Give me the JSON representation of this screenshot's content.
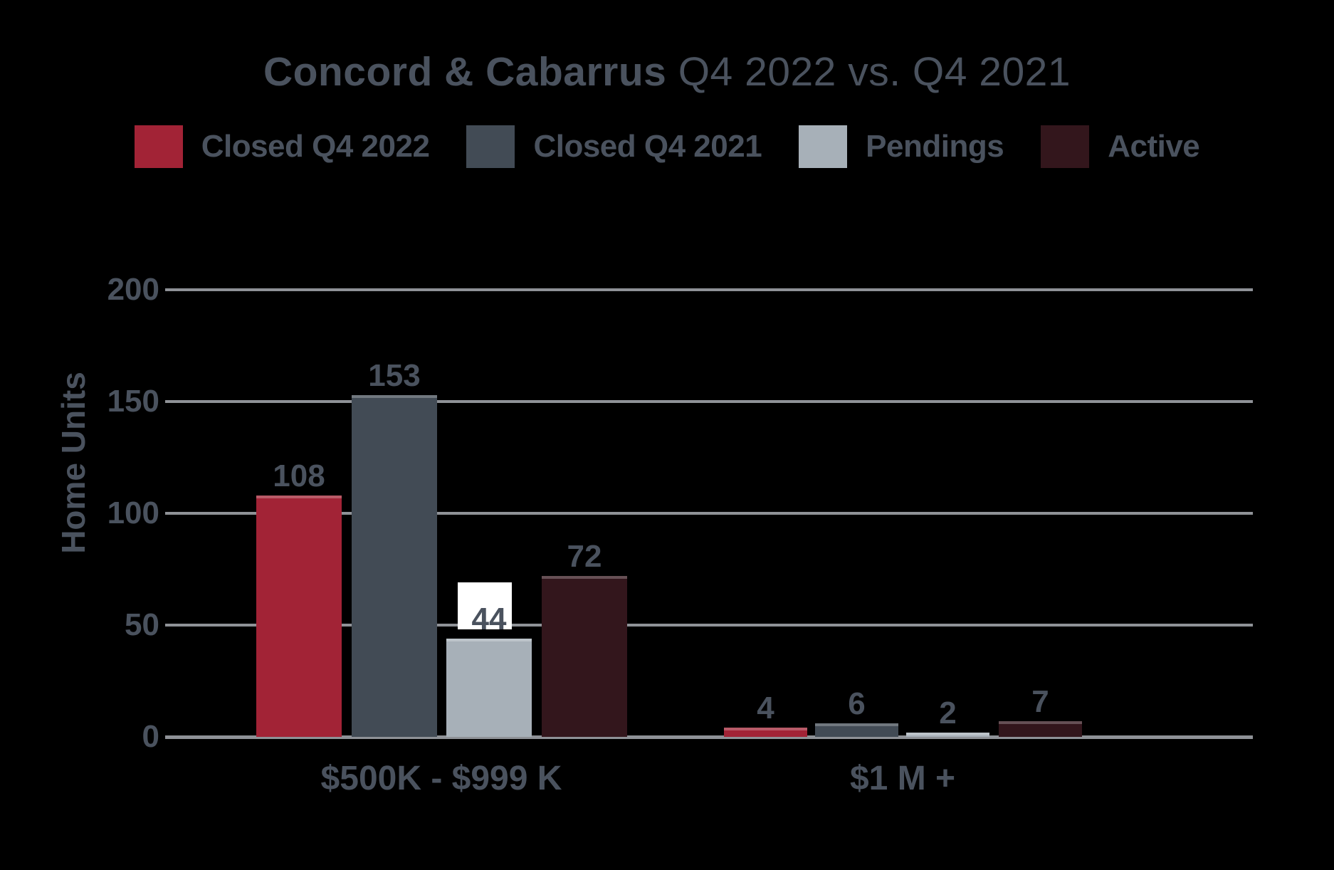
{
  "title": {
    "bold": "Concord & Cabarrus",
    "regular": " Q4 2022 vs. Q4 2021"
  },
  "chart_data": {
    "type": "bar",
    "title": "Concord & Cabarrus Q4 2022 vs. Q4 2021",
    "ylabel": "Home Units",
    "categories": [
      "$500K - $999 K",
      "$1 M +"
    ],
    "series": [
      {
        "name": "Closed Q4 2022",
        "color": "#a22336",
        "values": [
          108,
          4
        ]
      },
      {
        "name": "Closed Q4 2021",
        "color": "#424b55",
        "values": [
          153,
          6
        ]
      },
      {
        "name": "Pendings",
        "color": "#a7b0b8",
        "values": [
          44,
          2
        ]
      },
      {
        "name": "Active",
        "color": "#33161c",
        "values": [
          72,
          7
        ]
      }
    ],
    "ylim": [
      0,
      200
    ],
    "yticks": [
      0,
      50,
      100,
      150,
      200
    ],
    "grid": true,
    "legend_position": "top",
    "value_label_highlight": {
      "series_index": 2,
      "category_index": 0
    }
  },
  "colors": {
    "background": "#000000",
    "text": "#4a525e",
    "gridline": "#8f9297",
    "label_highlight_box": "#ffffff"
  }
}
